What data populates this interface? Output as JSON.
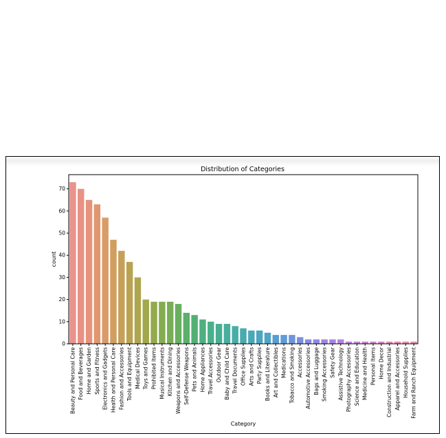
{
  "chart_data": {
    "type": "bar",
    "title": "Distribution of Categories",
    "xlabel": "Category",
    "ylabel": "count",
    "ylim": [
      0,
      75
    ],
    "yticks": [
      0,
      10,
      20,
      30,
      40,
      50,
      60,
      70
    ],
    "grid": false,
    "categories": [
      "Beauty and Personal Care",
      "Food and Beverages",
      "Home and Garden",
      "Sports and Fitness",
      "Electronics and Gadgets",
      "Health and Personal Care",
      "Fashion and Accessories",
      "Tools and Equipment",
      "Medical Devices",
      "Toys and Games",
      "Prohibited Items",
      "Musical Instruments",
      "Kitchen and Dining",
      "Weapons and Accessories",
      "Self-Defense Weapons",
      "Pets and Animals",
      "Home Appliances",
      "Travel Accessories",
      "Outdoor Gear",
      "Baby and Child Care",
      "Travel Documents",
      "Office Supplies",
      "Arts and Crafts",
      "Party Supplies",
      "Books and Literature",
      "Art and Collectibles",
      "Medications",
      "Tobacco and Smoking",
      "Accessories",
      "Automotive Accessories",
      "Bags and Luggage",
      "Smoking Accessories",
      "Safety Gear",
      "Assistive Technology",
      "Photography Accessories",
      "Science and Education",
      "Medicine and Health",
      "Personal Items",
      "Home Decor",
      "Construction and Industrial",
      "Apparel and Accessories",
      "Household Supplies",
      "Farm and Ranch Equipment"
    ],
    "values": [
      73,
      70,
      65,
      63,
      57,
      47,
      42,
      37,
      30,
      20,
      19,
      19,
      19,
      18,
      14,
      13,
      11,
      10,
      9,
      9,
      8,
      7,
      6,
      6,
      5,
      4,
      4,
      4,
      3,
      2,
      2,
      2,
      2,
      2,
      1,
      1,
      1,
      1,
      1,
      1,
      1,
      1,
      1
    ],
    "colors": [
      "#e8938d",
      "#e89285",
      "#e5937a",
      "#e0976f",
      "#d99b67",
      "#d09e5f",
      "#c6a058",
      "#baa253",
      "#aea54f",
      "#a1a84c",
      "#93aa4c",
      "#85ac50",
      "#77ae57",
      "#68af5f",
      "#5bb06a",
      "#52b075",
      "#4cb081",
      "#49b08b",
      "#48af95",
      "#48ae9e",
      "#48ada7",
      "#49abb0",
      "#4aa9b8",
      "#4ca6c0",
      "#51a3c8",
      "#589fd0",
      "#629ad6",
      "#6e95db",
      "#7b90df",
      "#878be2",
      "#9388e4",
      "#9e85e4",
      "#a983e3",
      "#b382e0",
      "#bd82dc",
      "#c682d7",
      "#ce83d1",
      "#d585ca",
      "#da87c2",
      "#de89ba",
      "#e18bb1",
      "#e38da8",
      "#e58f9f"
    ]
  }
}
